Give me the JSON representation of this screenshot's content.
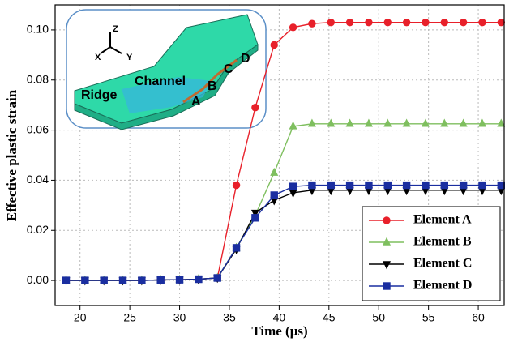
{
  "chart_data": {
    "type": "line",
    "xlabel": "Time (μs)",
    "ylabel": "Effective plastic strain",
    "x": [
      18.6,
      20.5,
      22.4,
      24.3,
      26.2,
      28.1,
      30.0,
      31.9,
      33.8,
      35.7,
      37.6,
      39.5,
      41.4,
      43.3,
      45.2,
      47.1,
      49.0,
      50.9,
      52.8,
      54.7,
      56.6,
      58.5,
      60.4,
      62.3
    ],
    "series": [
      {
        "name": "Element A",
        "color": "#e8202a",
        "marker": "circle",
        "values": [
          0,
          0,
          0,
          0,
          0,
          0.0002,
          0.0003,
          0.0005,
          0.001,
          0.038,
          0.069,
          0.094,
          0.101,
          0.1025,
          0.103,
          0.103,
          0.103,
          0.103,
          0.103,
          0.103,
          0.103,
          0.103,
          0.103,
          0.103
        ]
      },
      {
        "name": "Element B",
        "color": "#7fbf5f",
        "marker": "triangle-up",
        "values": [
          0,
          0,
          0,
          0,
          0,
          0.0002,
          0.0003,
          0.0005,
          0.001,
          0.013,
          0.026,
          0.043,
          0.0615,
          0.0625,
          0.0625,
          0.0625,
          0.0625,
          0.0625,
          0.0625,
          0.0625,
          0.0625,
          0.0625,
          0.0625,
          0.0625
        ]
      },
      {
        "name": "Element C",
        "color": "#000000",
        "marker": "triangle-down",
        "values": [
          0,
          0,
          0,
          0,
          0,
          0.0002,
          0.0003,
          0.0005,
          0.001,
          0.0125,
          0.027,
          0.032,
          0.035,
          0.036,
          0.036,
          0.036,
          0.036,
          0.036,
          0.036,
          0.036,
          0.036,
          0.036,
          0.036,
          0.036
        ]
      },
      {
        "name": "Element D",
        "color": "#1a2ea0",
        "marker": "square",
        "values": [
          0,
          0,
          0,
          0,
          0,
          0.0002,
          0.0003,
          0.0005,
          0.001,
          0.013,
          0.025,
          0.034,
          0.0375,
          0.038,
          0.038,
          0.038,
          0.038,
          0.038,
          0.038,
          0.038,
          0.038,
          0.038,
          0.038,
          0.038
        ]
      }
    ],
    "xlim": [
      17.5,
      62.6
    ],
    "ylim": [
      -0.01,
      0.11
    ],
    "xticks": [
      20,
      25,
      30,
      35,
      40,
      45,
      50,
      55,
      60
    ],
    "yticks": [
      {
        "value": 0,
        "label": "0.00"
      },
      0.02,
      0.04,
      0.06,
      0.08,
      {
        "value": 0.1,
        "label": "0.10"
      }
    ],
    "grid": true,
    "legend": "lower right",
    "annotations": [
      "Ridge",
      "Channel",
      "A",
      "B",
      "C",
      "D",
      "X",
      "Y",
      "Z"
    ]
  }
}
